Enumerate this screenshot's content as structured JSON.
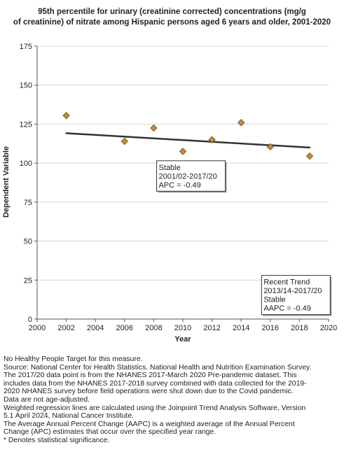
{
  "chart_data": {
    "type": "scatter",
    "title_line1": "95th percentile for urinary (creatinine corrected) concentrations (mg/g",
    "title_line2": "of creatinine) of nitrate among  Hispanic persons aged 6 years and older, 2001-2020",
    "xlabel": "Year",
    "ylabel": "Dependent Variable",
    "xlim": [
      2000,
      2020
    ],
    "ylim": [
      0,
      175
    ],
    "x_ticks": [
      "2000",
      "2002",
      "2004",
      "2006",
      "2008",
      "2010",
      "2012",
      "2014",
      "2016",
      "2018",
      "2020"
    ],
    "y_ticks": [
      "0",
      "25",
      "50",
      "75",
      "100",
      "125",
      "150",
      "175"
    ],
    "grid": "horizontal",
    "series": [
      {
        "marker": "diamond",
        "color": "#c8893a",
        "points": [
          {
            "x": 2002,
            "y": 130.5
          },
          {
            "x": 2006,
            "y": 114
          },
          {
            "x": 2008,
            "y": 122.5
          },
          {
            "x": 2010,
            "y": 107.5
          },
          {
            "x": 2012,
            "y": 115
          },
          {
            "x": 2014,
            "y": 126
          },
          {
            "x": 2016,
            "y": 110.5
          },
          {
            "x": 2018.7,
            "y": 104.5
          }
        ]
      }
    ],
    "trend_line": {
      "x": [
        2002,
        2018.7
      ],
      "y": [
        119.2,
        110
      ],
      "color": "#333333"
    },
    "annotations": [
      {
        "lines": [
          "Stable",
          "2001/02-2017/20",
          "APC = -0.49"
        ],
        "x": 2008.2,
        "y": 101.5
      },
      {
        "lines": [
          "Recent Trend",
          "2013/14-2017/20",
          "Stable",
          "AAPC = -0.49"
        ],
        "x": 2015.4,
        "y": 28
      }
    ]
  },
  "footnotes": [
    "No Healthy People Target for this measure.",
    "Source: National Center for Health Statistics. National Health and Nutrition Examination Survey.",
    "The 2017/20 data point is from the NHANES 2017-March 2020 Pre-pandemic dataset. This",
    "includes data from the NHANES 2017-2018 survey combined with data collected for the 2019-",
    "2020 NHANES survey before field operations were shut down due to the Covid pandemic.",
    "Data are not age-adjusted.",
    "Weighted regression lines are calculated using the Joinpoint Trend Analysis Software, Version",
    "5.1 April 2024, National Cancer Institute.",
    "The Average Annual Percent Change (AAPC) is a weighted average of the Annual Percent",
    "Change (APC) estimates that occur over the specified year range.",
    "* Denotes statistical significance."
  ]
}
